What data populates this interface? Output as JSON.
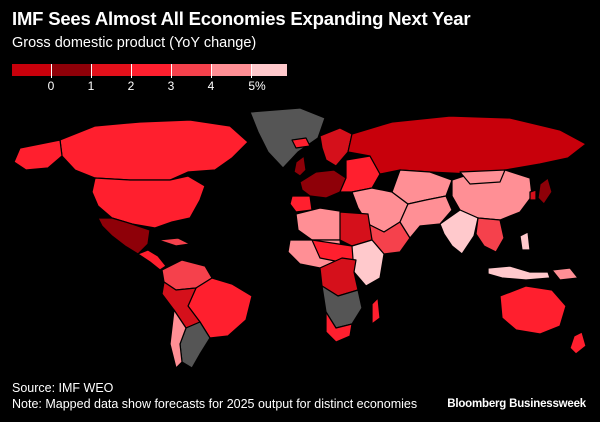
{
  "header": {
    "title": "IMF Sees Almost All Economies Expanding Next Year",
    "subtitle": "Gross domestic product (YoY change)"
  },
  "legend": {
    "labels": [
      "0",
      "1",
      "2",
      "3",
      "4",
      "5%"
    ],
    "colors": [
      "#c8000b",
      "#8e0008",
      "#e3101a",
      "#ff1f2e",
      "#f5414c",
      "#ff8f95",
      "#ffc9cc"
    ]
  },
  "map": {
    "background": "#000000",
    "no_data_color": "#555555",
    "border_color": "#000000"
  },
  "footer": {
    "source": "Source: IMF WEO",
    "note": "Note: Mapped data show forecasts for 2025 output for distinct economies",
    "brand": "Bloomberg Businessweek"
  }
}
